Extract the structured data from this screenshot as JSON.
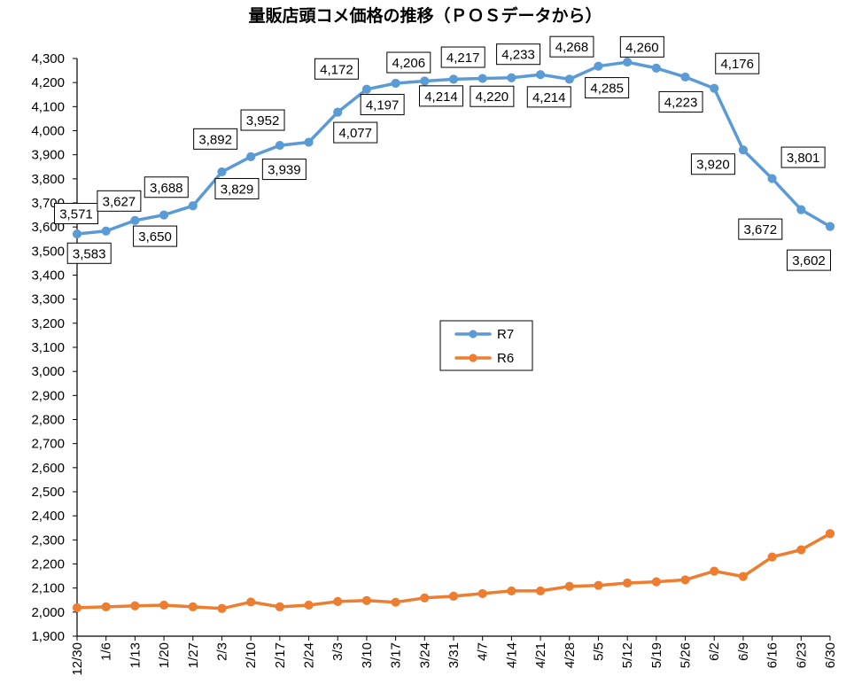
{
  "chart_data": {
    "type": "line",
    "title": "量販店頭コメ価格の推移（ＰＯＳデータから）",
    "xlabel": "",
    "ylabel": "",
    "categories": [
      "12/30",
      "1/6",
      "1/13",
      "1/20",
      "1/27",
      "2/3",
      "2/10",
      "2/17",
      "2/24",
      "3/3",
      "3/10",
      "3/17",
      "3/24",
      "3/31",
      "4/7",
      "4/14",
      "4/21",
      "4/28",
      "5/5",
      "5/12",
      "5/19",
      "5/26",
      "6/2",
      "6/9",
      "6/16",
      "6/23",
      "6/30"
    ],
    "series": [
      {
        "name": "R7",
        "color": "#5B9BD5",
        "data_labels": true,
        "values": [
          3571,
          3583,
          3627,
          3650,
          3688,
          3829,
          3892,
          3939,
          3952,
          4077,
          4172,
          4197,
          4206,
          4214,
          4217,
          4220,
          4233,
          4214,
          4268,
          4285,
          4260,
          4223,
          4176,
          3920,
          3801,
          3672,
          3602
        ]
      },
      {
        "name": "R6",
        "color": "#ED7D31",
        "data_labels": false,
        "values": [
          2018,
          2022,
          2026,
          2029,
          2022,
          2015,
          2042,
          2022,
          2029,
          2044,
          2048,
          2041,
          2059,
          2066,
          2077,
          2088,
          2088,
          2107,
          2111,
          2121,
          2126,
          2134,
          2170,
          2148,
          2229,
          2259,
          2326
        ]
      }
    ],
    "ylim": [
      1900,
      4300
    ],
    "yticks": [
      "1,900",
      "2,000",
      "2,100",
      "2,200",
      "2,300",
      "2,400",
      "2,500",
      "2,600",
      "2,700",
      "2,800",
      "2,900",
      "3,000",
      "3,100",
      "3,200",
      "3,300",
      "3,400",
      "3,500",
      "3,600",
      "3,700",
      "3,800",
      "3,900",
      "4,000",
      "4,100",
      "4,200",
      "4,300"
    ],
    "grid": false,
    "legend": "center"
  }
}
